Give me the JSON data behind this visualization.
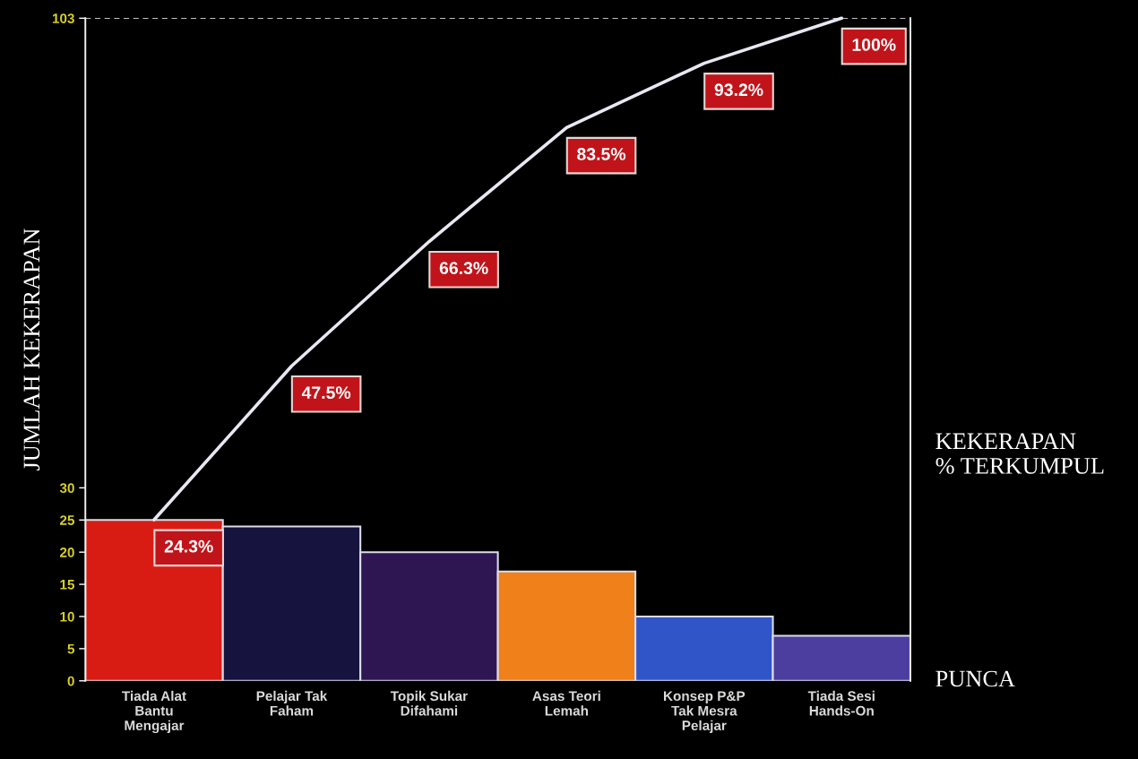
{
  "chart_data": {
    "type": "bar",
    "xlabel": "PUNCA",
    "ylabel": "JUMLAH KEKERAPAN",
    "y2label": "KEKERAPAN\n% TERKUMPUL",
    "categories": [
      "Tiada Alat\nBantu\nMengajar",
      "Pelajar Tak\nFaham",
      "Topik Sukar\nDifahami",
      "Asas Teori\nLemah",
      "Konsep P&P\nTak Mesra\nPelajar",
      "Tiada Sesi\nHands-On"
    ],
    "series": [
      {
        "colors": [
          "#d81c14",
          "#16133f",
          "#2e1652",
          "#f08019",
          "#3055c8",
          "#4b3e9e"
        ],
        "values": [
          25,
          24,
          20,
          17,
          10,
          7
        ]
      },
      {
        "type": "line",
        "axis": "y2",
        "color": "#e8e8f2",
        "values": [
          24.3,
          47.5,
          66.3,
          83.5,
          93.2,
          100
        ],
        "value_labels": [
          "24.3%",
          "47.5%",
          "66.3%",
          "83.5%",
          "93.2%",
          "100%"
        ]
      }
    ],
    "ylim": [
      0,
      103
    ],
    "yticks": [
      0,
      5,
      10,
      15,
      20,
      25,
      30,
      103
    ],
    "y2lim": [
      0,
      100
    ],
    "ref_lines": [
      {
        "axis": "y",
        "value": 103,
        "color": "#ffffff",
        "line_style": "dashed"
      }
    ]
  }
}
